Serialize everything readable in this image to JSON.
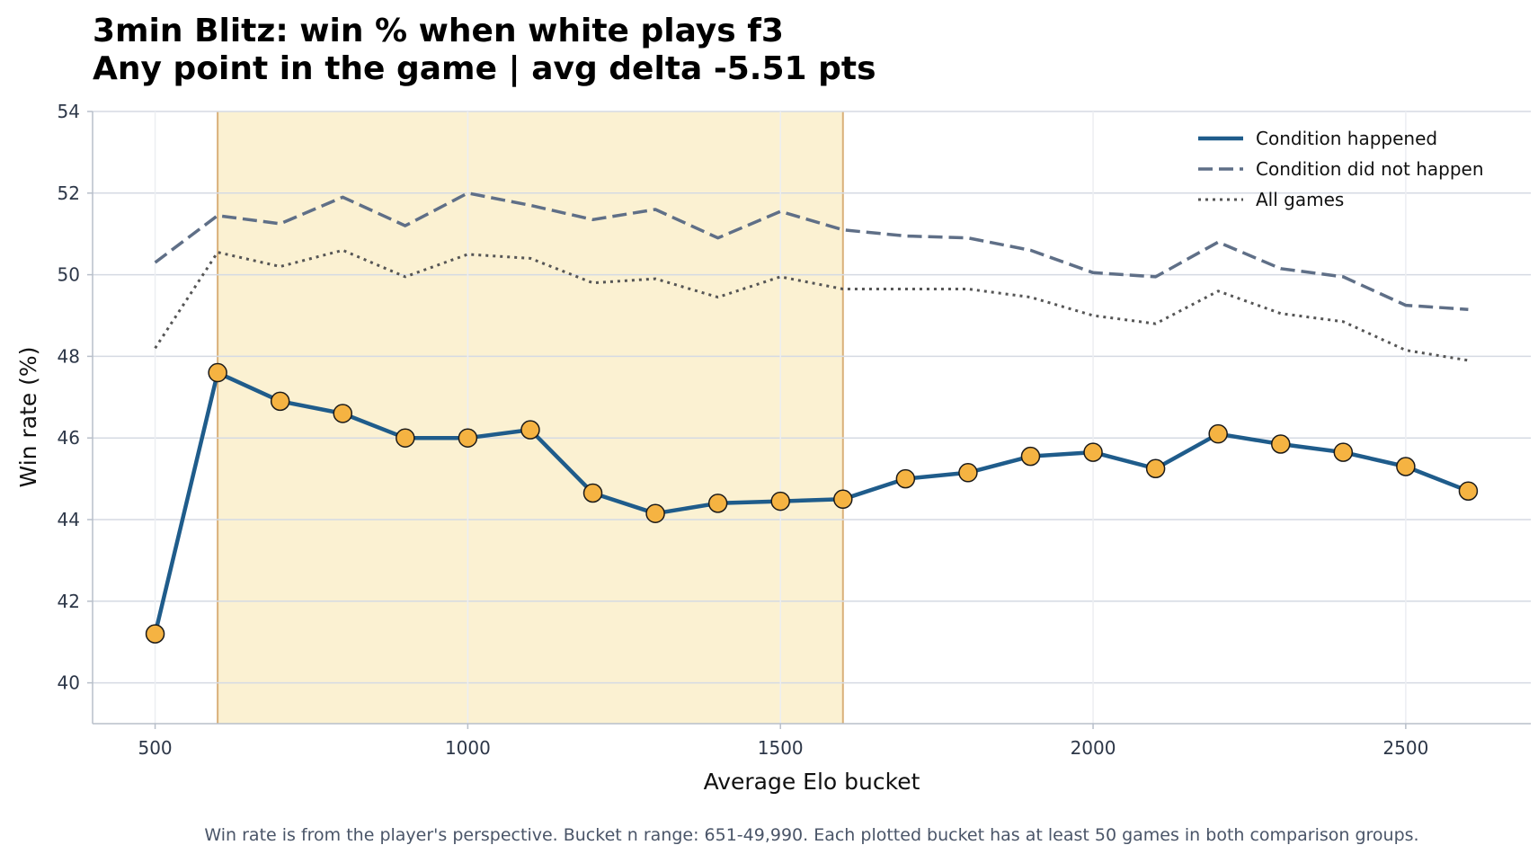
{
  "chart_data": {
    "type": "line",
    "title_lines": [
      "3min Blitz: win % when white plays f3",
      "Any point in the game | avg delta -5.51 pts"
    ],
    "xlabel": "Average Elo bucket",
    "ylabel": "Win rate (%)",
    "xlim": [
      400,
      2700
    ],
    "ylim": [
      39,
      54
    ],
    "x_ticks": [
      500,
      1000,
      1500,
      2000,
      2500
    ],
    "y_ticks": [
      40,
      42,
      44,
      46,
      48,
      50,
      52,
      54
    ],
    "grid": true,
    "legend_position": "top-right",
    "highlight_range": [
      600,
      1600
    ],
    "x": [
      500,
      600,
      700,
      800,
      900,
      1000,
      1100,
      1200,
      1300,
      1400,
      1500,
      1600,
      1700,
      1800,
      1900,
      2000,
      2100,
      2200,
      2300,
      2400,
      2500,
      2600
    ],
    "series": [
      {
        "name": "Condition happened",
        "style": "solid",
        "color": "#1f5c8b",
        "marker_color": "#f5b342",
        "values": [
          41.2,
          47.6,
          46.9,
          46.6,
          46.0,
          46.0,
          46.2,
          44.65,
          44.15,
          44.4,
          44.45,
          44.5,
          45.0,
          45.15,
          45.55,
          45.65,
          45.25,
          46.1,
          45.85,
          45.65,
          45.3,
          44.7
        ]
      },
      {
        "name": "Condition did not happen",
        "style": "dashed",
        "color": "#5f6f87",
        "values": [
          50.3,
          51.45,
          51.25,
          51.9,
          51.2,
          52.0,
          51.7,
          51.35,
          51.6,
          50.9,
          51.55,
          51.1,
          50.95,
          50.9,
          50.6,
          50.05,
          49.95,
          50.8,
          50.15,
          49.95,
          49.25,
          49.15
        ]
      },
      {
        "name": "All games",
        "style": "dotted",
        "color": "#555555",
        "values": [
          48.2,
          50.55,
          50.2,
          50.6,
          49.95,
          50.5,
          50.4,
          49.8,
          49.9,
          49.45,
          49.95,
          49.65,
          49.65,
          49.65,
          49.45,
          49.0,
          48.8,
          49.6,
          49.05,
          48.85,
          48.15,
          47.9
        ]
      }
    ],
    "footnote": "Win rate is from the player's perspective. Bucket n range: 651-49,990. Each plotted bucket has at least 50 games in both comparison groups."
  },
  "colors": {
    "highlight_fill": "#fbf1d2",
    "highlight_border": "#d9b07a",
    "grid": "#d5dae3",
    "axis": "#b8bfca"
  }
}
